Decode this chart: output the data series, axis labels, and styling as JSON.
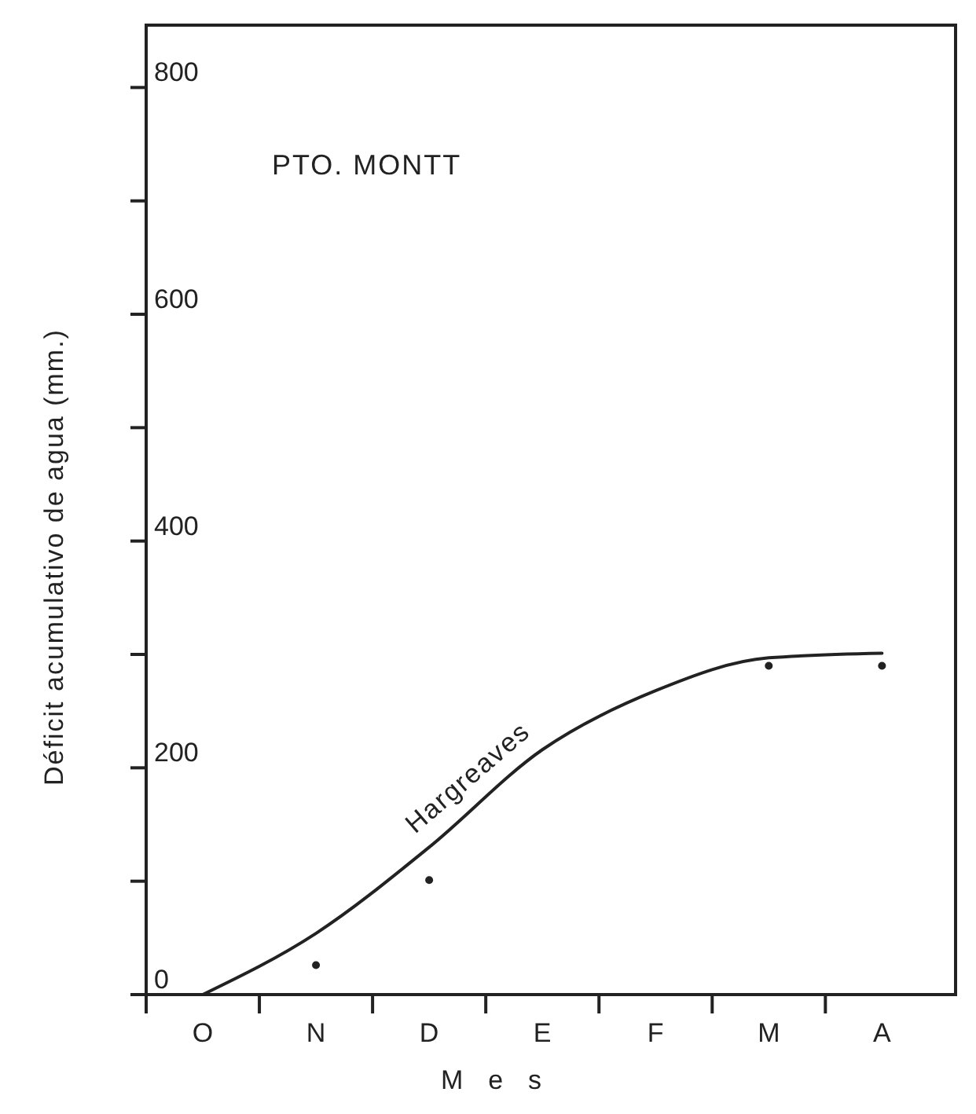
{
  "chart_data": {
    "type": "line",
    "title": "PTO. MONTT",
    "xlabel": "Mes",
    "ylabel": "Déficit acumulativo de agua (mm.)",
    "categories": [
      "O",
      "N",
      "D",
      "E",
      "F",
      "M",
      "A"
    ],
    "series": [
      {
        "name": "Hargreaves",
        "color": "#222222",
        "marker": "none",
        "values": [
          0,
          54,
          130,
          216,
          268,
          297,
          301
        ]
      },
      {
        "type": "scatter",
        "color": "#222222",
        "marker": "circle",
        "values": [
          null,
          26,
          101,
          null,
          null,
          290,
          290
        ]
      }
    ],
    "ylim": [
      0,
      855
    ],
    "yticks": [
      0,
      {
        "value": 100,
        "label": null
      },
      200,
      {
        "value": 300,
        "label": null
      },
      400,
      {
        "value": 500,
        "label": null
      },
      600,
      {
        "value": 700,
        "label": null
      },
      800
    ],
    "grid": false,
    "legend": false
  }
}
